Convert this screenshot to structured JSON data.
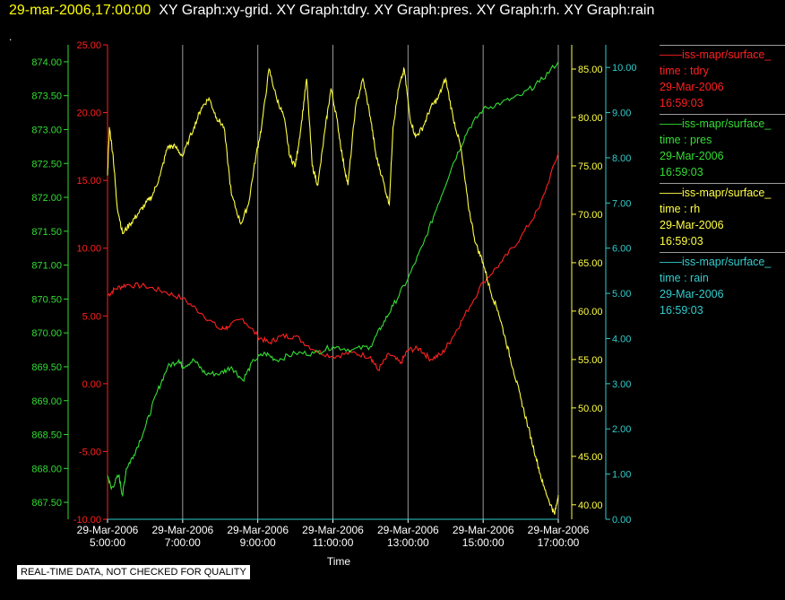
{
  "header": {
    "timestamp": "29-mar-2006,17:00:00",
    "graphs": "XY Graph:xy-grid.  XY Graph:tdry.  XY Graph:pres.  XY Graph:rh.  XY Graph:rain",
    "dot": "."
  },
  "badge": "REAL-TIME DATA, NOT CHECKED FOR QUALITY",
  "legend": [
    {
      "name": "iss-mapr/surface_",
      "field": "time : tdry",
      "date": "29-Mar-2006",
      "time": "16:59:03",
      "color": "#ff2020"
    },
    {
      "name": "iss-mapr/surface_",
      "field": "time : pres",
      "date": "29-Mar-2006",
      "time": "16:59:03",
      "color": "#33dd33"
    },
    {
      "name": "iss-mapr/surface_",
      "field": "time : rh",
      "date": "29-Mar-2006",
      "time": "16:59:03",
      "color": "#ffff44"
    },
    {
      "name": "iss-mapr/surface_",
      "field": "time : rain",
      "date": "29-Mar-2006",
      "time": "16:59:03",
      "color": "#33cccc"
    }
  ],
  "chart_data": {
    "type": "line",
    "xlabel": "Time",
    "xlim": [
      5,
      17
    ],
    "x_ticks": [
      {
        "value": 5,
        "label": [
          "29-Mar-2006",
          "5:00:00"
        ]
      },
      {
        "value": 7,
        "label": [
          "29-Mar-2006",
          "7:00:00"
        ]
      },
      {
        "value": 9,
        "label": [
          "29-Mar-2006",
          "9:00:00"
        ]
      },
      {
        "value": 11,
        "label": [
          "29-Mar-2006",
          "11:00:00"
        ]
      },
      {
        "value": 13,
        "label": [
          "29-Mar-2006",
          "13:00:00"
        ]
      },
      {
        "value": 15,
        "label": [
          "29-Mar-2006",
          "15:00:00"
        ]
      },
      {
        "value": 17,
        "label": [
          "29-Mar-2006",
          "17:00:00"
        ]
      }
    ],
    "grid": "vertical",
    "axes": [
      {
        "id": "tdry",
        "color": "#ff2020",
        "range": [
          -10,
          25
        ],
        "ticks": [
          "25.00",
          "20.00",
          "15.00",
          "10.00",
          "5.00",
          "0.00",
          "-5.00",
          "-10.00"
        ]
      },
      {
        "id": "pres",
        "color": "#33dd33",
        "range": [
          867.25,
          874.25
        ],
        "ticks": [
          "874.00",
          "873.50",
          "873.00",
          "872.50",
          "872.00",
          "871.50",
          "871.00",
          "870.50",
          "870.00",
          "869.50",
          "869.00",
          "868.50",
          "868.00",
          "867.50"
        ]
      },
      {
        "id": "rh",
        "color": "#ffff44",
        "range": [
          38.5,
          87.5
        ],
        "ticks": [
          "85.00",
          "80.00",
          "75.00",
          "70.00",
          "65.00",
          "60.00",
          "55.00",
          "50.00",
          "45.00",
          "40.00"
        ]
      },
      {
        "id": "rain",
        "color": "#33cccc",
        "range": [
          0,
          10.5
        ],
        "ticks": [
          "10.00",
          "9.00",
          "8.00",
          "7.00",
          "6.00",
          "5.00",
          "4.00",
          "3.00",
          "2.00",
          "1.00",
          "0.00"
        ]
      }
    ],
    "series": [
      {
        "axis": "tdry",
        "color": "#ff2020",
        "x": [
          5.0,
          5.2,
          5.5,
          6.0,
          6.5,
          7.0,
          7.5,
          8.0,
          8.2,
          8.6,
          9.0,
          9.3,
          9.6,
          10.0,
          10.5,
          11.0,
          11.5,
          12.0,
          12.2,
          12.5,
          12.8,
          13.0,
          13.3,
          13.6,
          13.9,
          14.2,
          14.5,
          15.0,
          15.5,
          16.0,
          16.5,
          17.0
        ],
        "y": [
          6.5,
          7.0,
          7.3,
          7.2,
          6.8,
          6.3,
          5.2,
          4.0,
          4.2,
          4.8,
          3.5,
          3.0,
          3.5,
          3.5,
          2.5,
          2.0,
          2.3,
          2.0,
          1.0,
          2.2,
          1.5,
          2.5,
          2.6,
          1.8,
          2.2,
          3.5,
          5.0,
          7.5,
          9.0,
          10.8,
          13.0,
          17.0
        ]
      },
      {
        "axis": "pres",
        "color": "#33dd33",
        "x": [
          5.0,
          5.1,
          5.3,
          5.4,
          5.5,
          5.7,
          6.0,
          6.3,
          6.6,
          6.9,
          7.0,
          7.3,
          7.6,
          8.0,
          8.3,
          8.6,
          8.9,
          9.2,
          9.5,
          10.0,
          10.5,
          11.0,
          11.5,
          12.0,
          12.3,
          12.6,
          13.0,
          13.4,
          13.8,
          14.2,
          14.6,
          15.0,
          15.5,
          16.0,
          16.5,
          17.0
        ],
        "y": [
          867.9,
          867.7,
          867.9,
          867.6,
          868.0,
          868.2,
          868.6,
          869.1,
          869.5,
          869.6,
          869.5,
          869.6,
          869.4,
          869.4,
          869.5,
          869.3,
          869.6,
          869.7,
          869.6,
          869.7,
          869.7,
          869.8,
          869.75,
          869.8,
          870.1,
          870.4,
          870.8,
          871.3,
          871.9,
          872.5,
          873.0,
          873.3,
          873.4,
          873.5,
          873.7,
          874.0
        ]
      },
      {
        "axis": "rh",
        "color": "#ffff44",
        "x": [
          5.0,
          5.05,
          5.15,
          5.25,
          5.4,
          5.6,
          5.8,
          6.0,
          6.2,
          6.4,
          6.6,
          6.8,
          7.0,
          7.3,
          7.5,
          7.7,
          7.9,
          8.1,
          8.3,
          8.55,
          8.75,
          8.95,
          9.1,
          9.3,
          9.5,
          9.7,
          9.85,
          10.0,
          10.15,
          10.3,
          10.45,
          10.6,
          10.8,
          10.95,
          11.1,
          11.25,
          11.4,
          11.6,
          11.8,
          12.0,
          12.15,
          12.3,
          12.5,
          12.6,
          12.75,
          12.9,
          13.05,
          13.2,
          13.4,
          13.6,
          13.8,
          14.0,
          14.2,
          14.4,
          14.6,
          14.8,
          15.0,
          15.2,
          15.4,
          15.6,
          15.8,
          16.0,
          16.2,
          16.4,
          16.6,
          16.8,
          16.9,
          17.0
        ],
        "y": [
          74,
          79,
          76,
          71,
          68,
          69,
          70,
          71,
          72,
          74,
          77,
          77,
          76,
          79,
          81,
          82,
          80,
          79,
          72,
          69,
          71,
          76,
          79,
          85,
          82,
          80,
          76,
          75,
          79,
          84,
          75,
          73,
          79,
          83,
          80,
          76,
          73,
          81,
          84,
          80,
          76,
          74,
          71,
          79,
          83,
          85,
          80,
          78,
          79,
          81,
          82,
          84,
          80,
          77,
          71,
          67,
          65,
          62,
          60,
          57,
          54,
          51,
          48,
          45,
          42,
          40,
          39,
          41
        ]
      },
      {
        "axis": "rain",
        "color": "#33cccc",
        "x": [
          5.0,
          17.0
        ],
        "y": [
          0.0,
          0.0
        ]
      }
    ]
  }
}
